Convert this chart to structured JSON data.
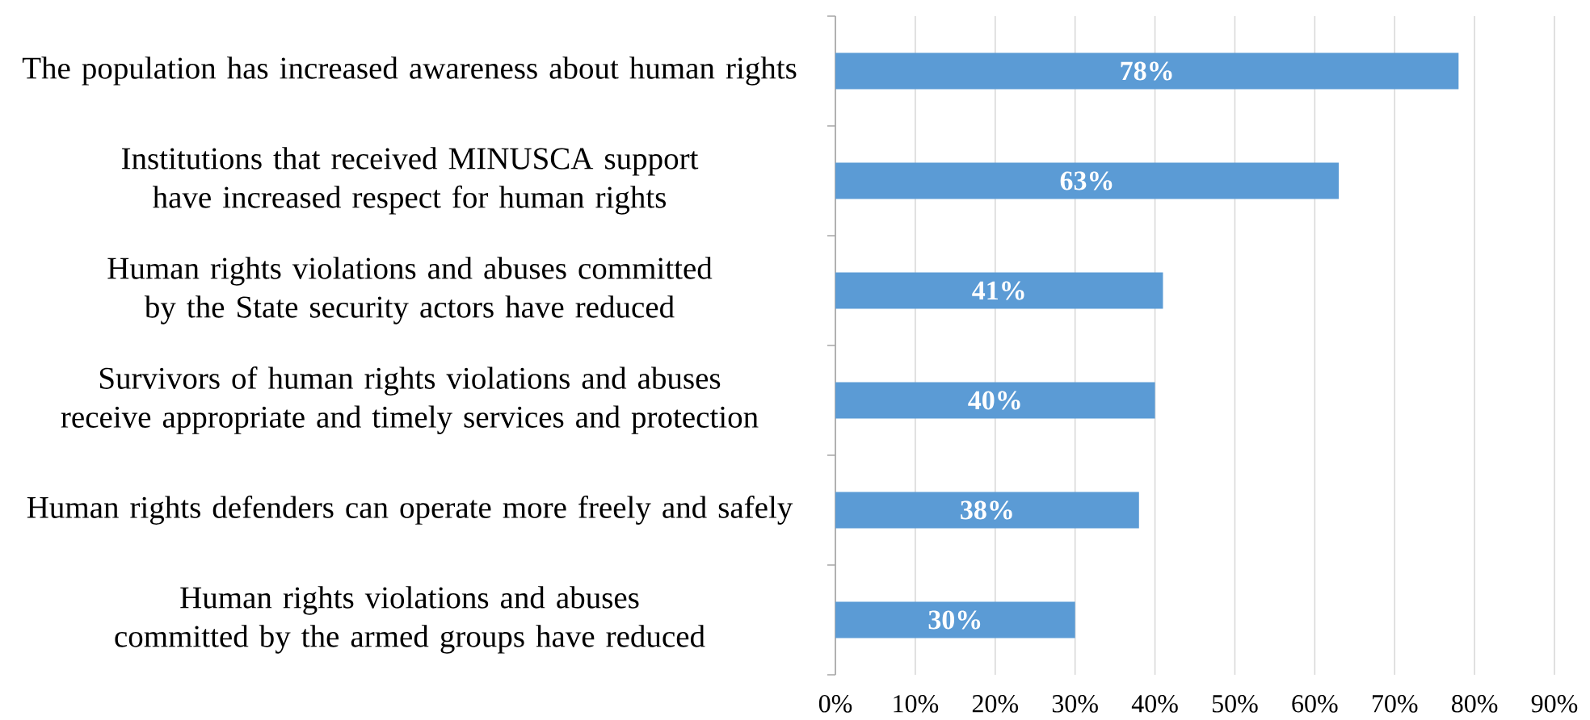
{
  "chart_data": {
    "type": "bar",
    "orientation": "horizontal",
    "categories": [
      "The population has increased awareness about human rights",
      "Institutions that received MINUSCA support have increased respect for human rights",
      "Human rights violations and abuses committed by the State security actors have reduced",
      "Survivors of human rights violations and abuses receive appropriate and timely services and protection",
      "Human rights defenders can operate more freely and safely",
      "Human rights violations and abuses committed by the armed groups have reduced"
    ],
    "values": [
      78,
      63,
      41,
      40,
      38,
      30
    ],
    "value_labels": [
      "78%",
      "63%",
      "41%",
      "40%",
      "38%",
      "30%"
    ],
    "color": "#5b9bd5",
    "xlim": [
      0,
      90
    ],
    "xticks": [
      {
        "value": 0,
        "label": "0%"
      },
      {
        "value": 10,
        "label": "10%"
      },
      {
        "value": 20,
        "label": "20%"
      },
      {
        "value": 30,
        "label": "30%"
      },
      {
        "value": 40,
        "label": "40%"
      },
      {
        "value": 50,
        "label": "50%"
      },
      {
        "value": 60,
        "label": "60%"
      },
      {
        "value": 70,
        "label": "70%"
      },
      {
        "value": 80,
        "label": "80%"
      },
      {
        "value": 90,
        "label": "90%"
      }
    ],
    "grid": "x"
  }
}
